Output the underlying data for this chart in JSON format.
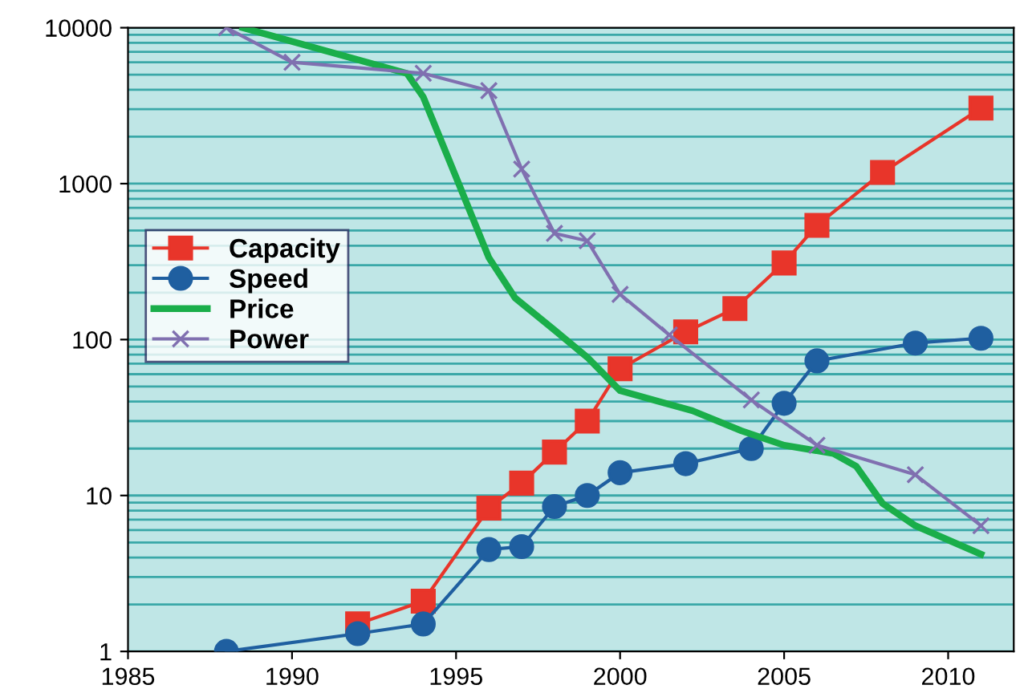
{
  "chart_data": {
    "type": "line",
    "log": "y",
    "xlim": [
      1985,
      2012
    ],
    "ylim": [
      1,
      10000
    ],
    "xticks": [
      1985,
      1990,
      1995,
      2000,
      2005,
      2010
    ],
    "yticks": [
      1,
      10,
      100,
      1000,
      10000
    ],
    "grid": "y",
    "legend": "left",
    "series": [
      {
        "name": "Capacity",
        "color": "#e8352a",
        "marker": "square",
        "x": [
          1992,
          1994,
          1996,
          1997,
          1998,
          1999,
          2000,
          2002,
          2003.5,
          2005,
          2006,
          2008,
          2011
        ],
        "values": [
          1.5,
          2.1,
          8.3,
          12,
          19,
          30,
          65,
          112,
          158,
          310,
          540,
          1180,
          3050
        ]
      },
      {
        "name": "Speed",
        "color": "#1f5fa0",
        "marker": "circle",
        "x": [
          1988,
          1992,
          1994,
          1996,
          1997,
          1998,
          1999,
          2000,
          2002,
          2004,
          2005,
          2006,
          2009,
          2011
        ],
        "values": [
          1,
          1.3,
          1.5,
          4.5,
          4.7,
          8.5,
          10,
          14,
          16,
          20,
          39,
          73,
          95,
          102
        ]
      },
      {
        "name": "Price",
        "color": "#1aae4a",
        "marker": "none",
        "x": [
          1988.5,
          1993.5,
          1994,
          1995,
          1996,
          1996.8,
          1998,
          1999,
          2000,
          2001.2,
          2002.2,
          2003.7,
          2005,
          2006.5,
          2007.2,
          2008,
          2009,
          2011
        ],
        "values": [
          10000,
          5100,
          3600,
          1100,
          335,
          185,
          115,
          77,
          47,
          40,
          35,
          26,
          21,
          18.6,
          15.4,
          8.9,
          6.4,
          4.2
        ]
      },
      {
        "name": "Power",
        "color": "#8070b0",
        "marker": "cross",
        "x": [
          1988,
          1990,
          1994,
          1996,
          1997,
          1998,
          1999,
          2000,
          2001.5,
          2004,
          2006,
          2009,
          2011
        ],
        "values": [
          10000,
          6000,
          5100,
          3950,
          1240,
          480,
          430,
          195,
          107,
          41,
          21,
          13.6,
          6.4
        ]
      }
    ]
  }
}
